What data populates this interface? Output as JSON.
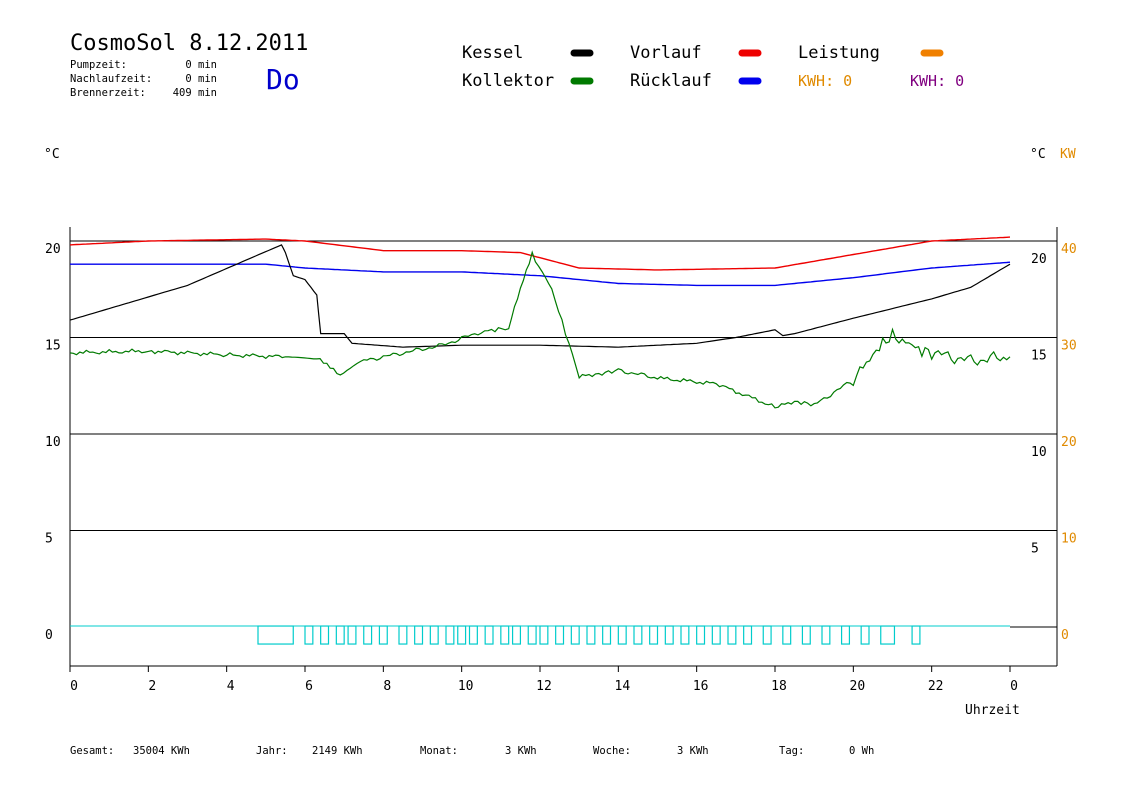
{
  "header": {
    "title": "CosmoSol 8.12.2011",
    "day": "Do",
    "stats": [
      {
        "label": "Pumpzeit:",
        "value": "0 min"
      },
      {
        "label": "Nachlaufzeit:",
        "value": "0 min"
      },
      {
        "label": "Brennerzeit:",
        "value": "409 min"
      }
    ]
  },
  "legend": {
    "items": [
      {
        "label": "Kessel",
        "color": "#000000"
      },
      {
        "label": "Kollektor",
        "color": "#007a00"
      },
      {
        "label": "Vorlauf",
        "color": "#ee0000"
      },
      {
        "label": "Rücklauf",
        "color": "#0000ee"
      },
      {
        "label": "Leistung",
        "color": "#f08000"
      }
    ],
    "kwh_orange": "KWH: 0",
    "kwh_purple": "KWH: 0",
    "kwh_orange_color": "#e08a00",
    "kwh_purple_color": "#800080"
  },
  "axes": {
    "left_unit": "°C",
    "right_unit": "°C",
    "right_unit2": "KW",
    "left_ticks": [
      "20",
      "15",
      "10",
      "5",
      "0"
    ],
    "right_ticks_c": [
      "20",
      "15",
      "10",
      "5"
    ],
    "right_ticks_kw": [
      "40",
      "30",
      "20",
      "10",
      "0"
    ],
    "x_ticks": [
      "0",
      "2",
      "4",
      "6",
      "8",
      "10",
      "12",
      "14",
      "16",
      "18",
      "20",
      "22",
      "0"
    ],
    "x_label": "Uhrzeit"
  },
  "footer": [
    {
      "label": "Gesamt:",
      "value": "35004 KWh"
    },
    {
      "label": "Jahr:",
      "value": "2149 KWh"
    },
    {
      "label": "Monat:",
      "value": "3 KWh"
    },
    {
      "label": "Woche:",
      "value": "3 KWh"
    },
    {
      "label": "Tag:",
      "value": "0 Wh"
    }
  ],
  "chart_data": {
    "type": "line",
    "x_unit": "hours",
    "xlim": [
      0,
      24
    ],
    "ylim": [
      0,
      20
    ],
    "y2lim": [
      0,
      40
    ],
    "grid": true,
    "series": [
      {
        "name": "Vorlauf",
        "color": "#ee0000",
        "x": [
          0,
          2,
          5,
          6,
          8,
          10,
          11.5,
          13,
          15,
          18,
          20,
          22,
          24
        ],
        "y": [
          19.8,
          20.0,
          20.1,
          20.0,
          19.5,
          19.5,
          19.4,
          18.6,
          18.5,
          18.6,
          19.3,
          20.0,
          20.2
        ]
      },
      {
        "name": "Rücklauf",
        "color": "#0000ee",
        "x": [
          0,
          5,
          6,
          8,
          10,
          12,
          14,
          16,
          18,
          20,
          22,
          24
        ],
        "y": [
          18.8,
          18.8,
          18.6,
          18.4,
          18.4,
          18.2,
          17.8,
          17.7,
          17.7,
          18.1,
          18.6,
          18.9
        ]
      },
      {
        "name": "Kessel",
        "color": "#000000",
        "x": [
          0,
          1,
          3,
          5.4,
          5.5,
          5.7,
          6.0,
          6.3,
          6.4,
          7,
          7.2,
          8.5,
          10,
          12,
          14,
          16,
          17,
          18.0,
          18.2,
          18.5,
          20,
          22,
          23,
          24
        ],
        "y": [
          15.9,
          16.5,
          17.7,
          19.8,
          19.4,
          18.2,
          18.0,
          17.2,
          15.2,
          15.2,
          14.7,
          14.5,
          14.6,
          14.6,
          14.5,
          14.7,
          15.0,
          15.4,
          15.1,
          15.2,
          16.0,
          17.0,
          17.6,
          18.8
        ]
      },
      {
        "name": "Kollektor",
        "color": "#007a00",
        "x": [
          0,
          2,
          4,
          5.5,
          6.3,
          6.9,
          7.5,
          8.5,
          9.5,
          10.5,
          11.2,
          11.5,
          11.8,
          12.3,
          13,
          13.5,
          14,
          15,
          16.5,
          18,
          18.5,
          19,
          20,
          20.5,
          21,
          21.5,
          22,
          23,
          24
        ],
        "y": [
          14.2,
          14.3,
          14.1,
          14.0,
          13.9,
          13.1,
          13.8,
          14.2,
          14.6,
          15.3,
          15.5,
          17.5,
          19.3,
          17.5,
          13.0,
          13.1,
          13.3,
          12.9,
          12.6,
          11.4,
          11.7,
          11.5,
          12.8,
          14.2,
          15.1,
          14.5,
          14.2,
          13.8,
          14.0
        ]
      }
    ],
    "pump": {
      "name": "Pumpe",
      "color": "#00cccc",
      "baseline": 0.05,
      "starts": [
        4.8,
        6.0,
        6.4,
        6.8,
        7.1,
        7.5,
        7.9,
        8.4,
        8.8,
        9.2,
        9.6,
        9.9,
        10.2,
        10.6,
        11.0,
        11.3,
        11.7,
        12.0,
        12.4,
        12.8,
        13.2,
        13.6,
        14.0,
        14.4,
        14.8,
        15.2,
        15.6,
        16.0,
        16.4,
        16.8,
        17.2,
        17.7,
        18.2,
        18.7,
        19.2,
        19.7,
        20.2,
        20.7,
        21.5
      ],
      "widths": [
        0.9,
        0.2,
        0.2,
        0.2,
        0.2,
        0.2,
        0.2,
        0.2,
        0.2,
        0.2,
        0.2,
        0.2,
        0.2,
        0.2,
        0.2,
        0.2,
        0.2,
        0.2,
        0.2,
        0.2,
        0.2,
        0.2,
        0.2,
        0.2,
        0.2,
        0.2,
        0.2,
        0.2,
        0.2,
        0.2,
        0.2,
        0.2,
        0.2,
        0.2,
        0.2,
        0.2,
        0.2,
        0.35,
        0.2
      ]
    }
  }
}
